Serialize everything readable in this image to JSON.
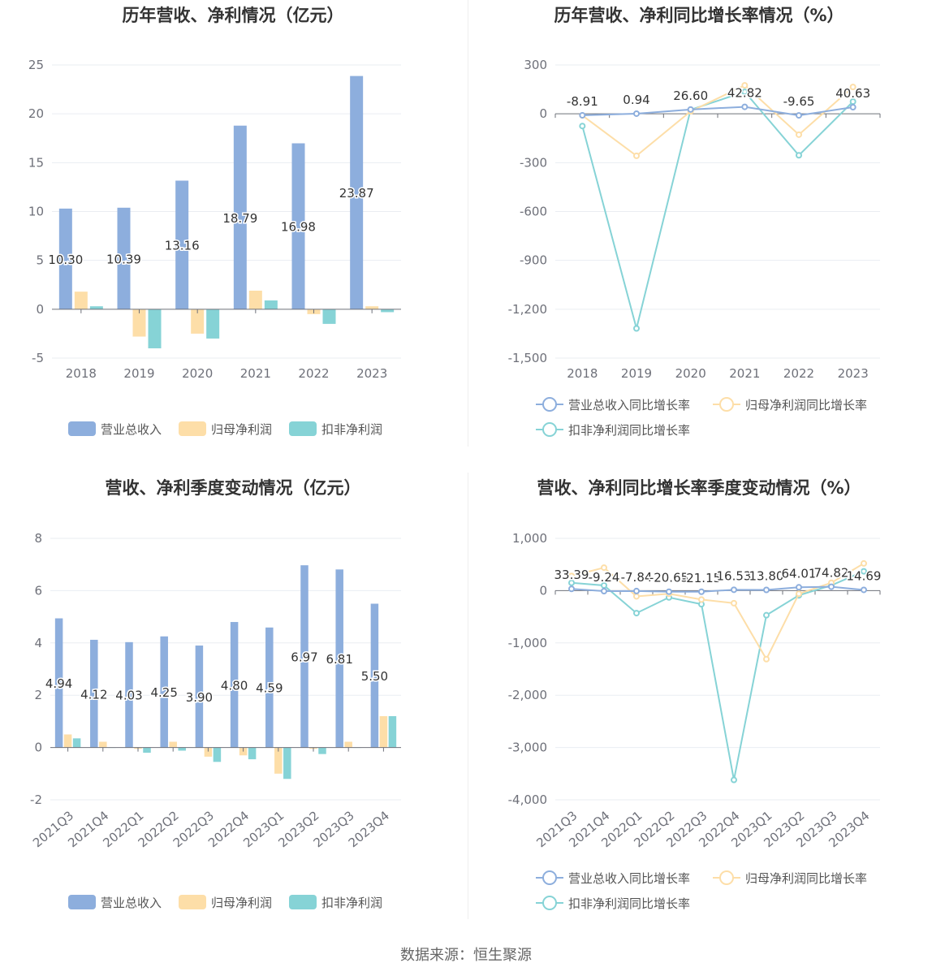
{
  "source": "数据来源：恒生聚源",
  "colors": {
    "revenue": "#8daedd",
    "net_profit": "#fddea8",
    "deducted": "#86d3d6",
    "grid": "#eaedf2",
    "axis": "#6e7079",
    "tick": "#6e7079",
    "title": "#333333",
    "label": "#333333"
  },
  "chart_data": [
    {
      "type": "bar",
      "title": "历年营收、净利情况（亿元）",
      "categories": [
        "2018",
        "2019",
        "2020",
        "2021",
        "2022",
        "2023"
      ],
      "ylim": [
        -5,
        25
      ],
      "yticks": [
        -5,
        0,
        5,
        10,
        15,
        20,
        25
      ],
      "ytick_labels": [
        "-5",
        "0",
        "5",
        "10",
        "15",
        "20",
        "25"
      ],
      "series": [
        {
          "name": "营业总收入",
          "values": [
            10.3,
            10.39,
            13.16,
            18.79,
            16.98,
            23.87
          ],
          "labels": [
            "10.30",
            "10.39",
            "13.16",
            "18.79",
            "16.98",
            "23.87"
          ]
        },
        {
          "name": "归母净利润",
          "values": [
            1.8,
            -2.8,
            -2.5,
            1.9,
            -0.5,
            0.3
          ]
        },
        {
          "name": "扣非净利润",
          "values": [
            0.3,
            -4.0,
            -3.0,
            0.9,
            -1.5,
            -0.3
          ]
        }
      ],
      "legend": "bottom"
    },
    {
      "type": "line",
      "title": "历年营收、净利同比增长率情况（%）",
      "categories": [
        "2018",
        "2019",
        "2020",
        "2021",
        "2022",
        "2023"
      ],
      "ylim": [
        -1500,
        300
      ],
      "yticks": [
        -1500,
        -1200,
        -900,
        -600,
        -300,
        0,
        300
      ],
      "ytick_labels": [
        "-1,500",
        "-1,200",
        "-900",
        "-600",
        "-300",
        "0",
        "300"
      ],
      "series": [
        {
          "name": "营业总收入同比增长率",
          "values": [
            -8.91,
            0.94,
            26.6,
            42.82,
            -9.65,
            40.63
          ],
          "labels": [
            "-8.91",
            "0.94",
            "26.60",
            "42.82",
            "-9.65",
            "40.63"
          ]
        },
        {
          "name": "归母净利润同比增长率",
          "values": [
            -10,
            -258,
            15,
            175,
            -128,
            165
          ]
        },
        {
          "name": "扣非净利润同比增长率",
          "values": [
            -75,
            -1318,
            25,
            135,
            -255,
            75
          ]
        }
      ],
      "legend": "bottom"
    },
    {
      "type": "bar",
      "title": "营收、净利季度变动情况（亿元）",
      "categories": [
        "2021Q3",
        "2021Q4",
        "2022Q1",
        "2022Q2",
        "2022Q3",
        "2022Q4",
        "2023Q1",
        "2023Q2",
        "2023Q3",
        "2023Q4"
      ],
      "ylim": [
        -2,
        8
      ],
      "yticks": [
        -2,
        0,
        2,
        4,
        6,
        8
      ],
      "ytick_labels": [
        "-2",
        "0",
        "2",
        "4",
        "6",
        "8"
      ],
      "series": [
        {
          "name": "营业总收入",
          "values": [
            4.94,
            4.12,
            4.03,
            4.25,
            3.9,
            4.8,
            4.59,
            6.97,
            6.81,
            5.5
          ],
          "labels": [
            "4.94",
            "4.12",
            "4.03",
            "4.25",
            "3.90",
            "4.80",
            "4.59",
            "6.97",
            "6.81",
            "5.50"
          ]
        },
        {
          "name": "归母净利润",
          "values": [
            0.5,
            0.22,
            -0.05,
            0.22,
            -0.35,
            -0.3,
            -1.0,
            -0.05,
            0.22,
            1.2
          ]
        },
        {
          "name": "扣非净利润",
          "values": [
            0.35,
            0.0,
            -0.2,
            -0.12,
            -0.55,
            -0.45,
            -1.2,
            -0.25,
            0.0,
            1.2
          ]
        }
      ],
      "legend": "bottom"
    },
    {
      "type": "line",
      "title": "营收、净利同比增长率季度变动情况（%）",
      "categories": [
        "2021Q3",
        "2021Q4",
        "2022Q1",
        "2022Q2",
        "2022Q3",
        "2022Q4",
        "2023Q1",
        "2023Q2",
        "2023Q3",
        "2023Q4"
      ],
      "ylim": [
        -4000,
        1000
      ],
      "yticks": [
        -4000,
        -3000,
        -2000,
        -1000,
        0,
        1000
      ],
      "ytick_labels": [
        "-4,000",
        "-3,000",
        "-2,000",
        "-1,000",
        "0",
        "1,000"
      ],
      "series": [
        {
          "name": "营业总收入同比增长率",
          "values": [
            33.39,
            -9.24,
            -7.84,
            -20.65,
            -21.15,
            16.53,
            13.8,
            64.01,
            74.82,
            14.69
          ],
          "labels": [
            "33.39",
            "-9.24",
            "-7.84",
            "-20.65",
            "-21.15",
            "16.53",
            "13.80",
            "64.01",
            "74.82",
            "14.69"
          ]
        },
        {
          "name": "归母净利润同比增长率",
          "values": [
            280,
            440,
            -110,
            -60,
            -170,
            -240,
            -1310,
            -60,
            150,
            520
          ]
        },
        {
          "name": "扣非净利润同比增长率",
          "values": [
            150,
            100,
            -430,
            -130,
            -260,
            -3620,
            -470,
            -90,
            100,
            370
          ]
        }
      ],
      "legend": "bottom"
    }
  ]
}
